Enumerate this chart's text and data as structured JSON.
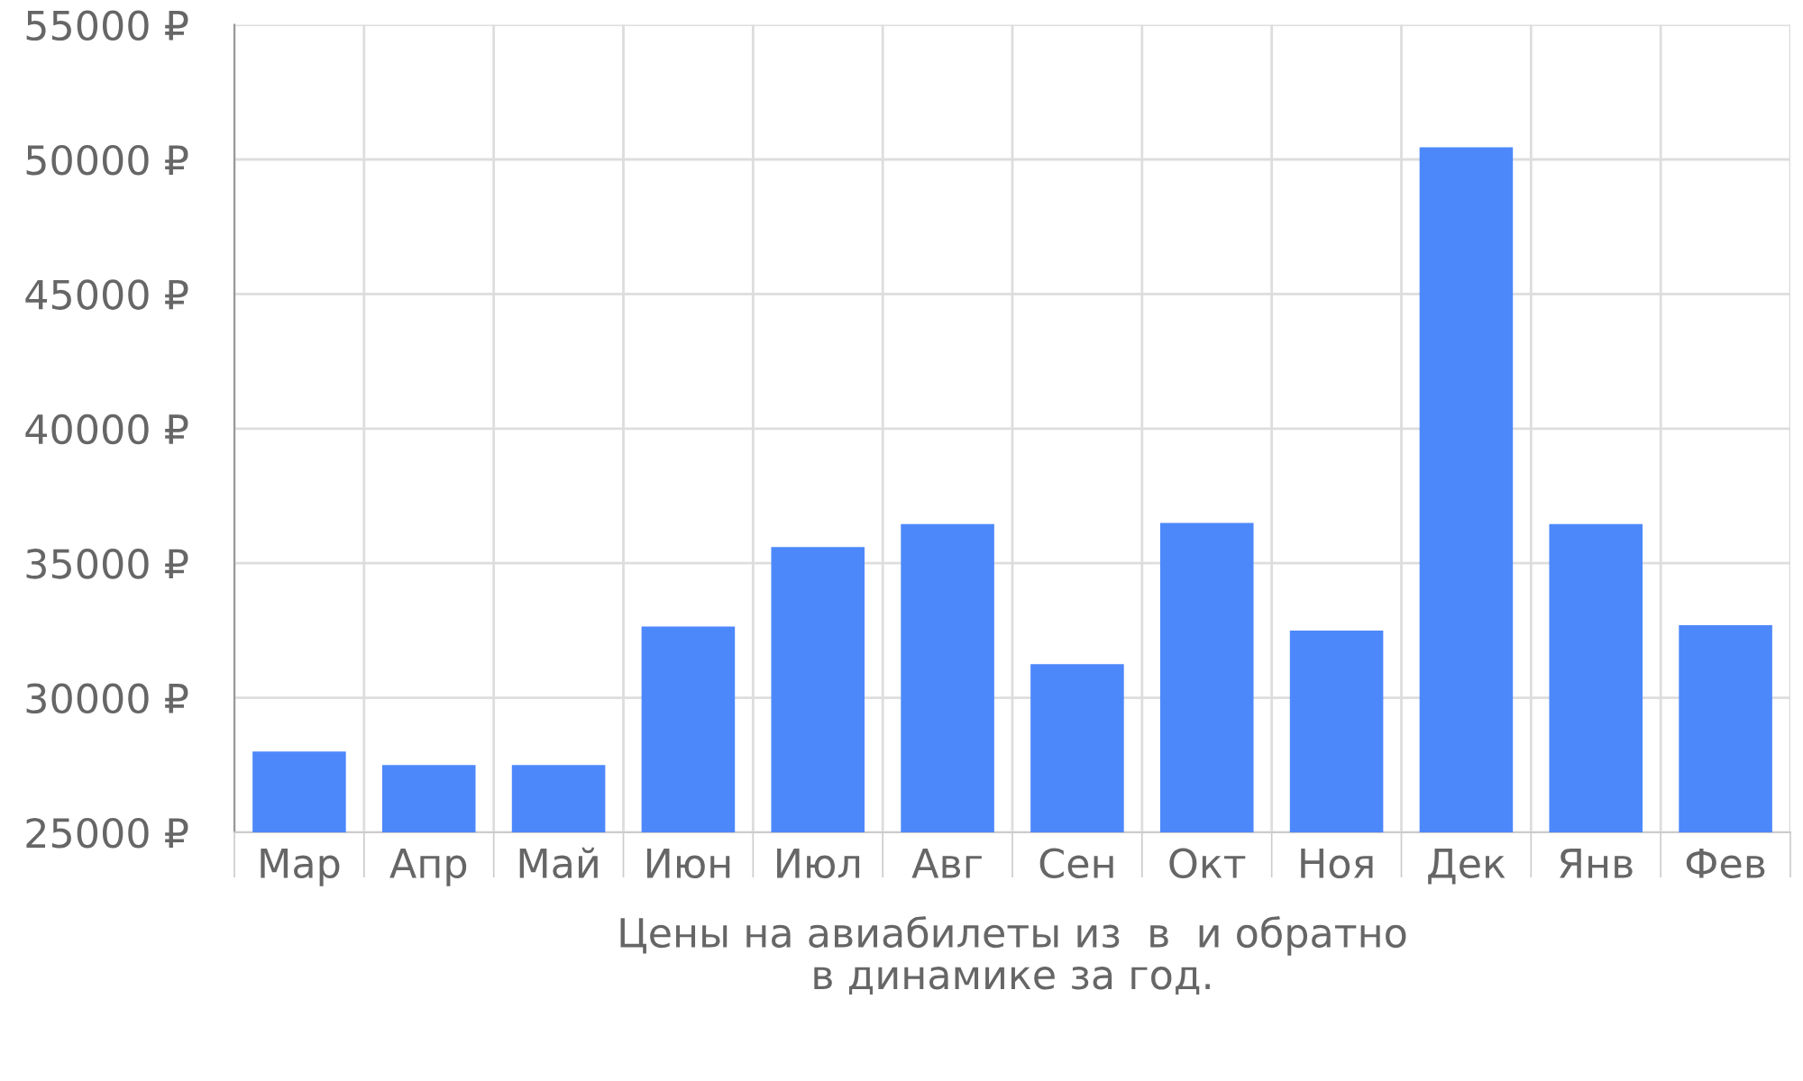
{
  "chart_data": {
    "type": "bar",
    "xlabel": "Цены на авиабилеты из  в  и обратно\nв динамике за год.",
    "categories": [
      "Мар",
      "Апр",
      "Май",
      "Июн",
      "Июл",
      "Авг",
      "Сен",
      "Окт",
      "Ноя",
      "Дек",
      "Янв",
      "Фев"
    ],
    "values": [
      28000,
      27500,
      27500,
      32650,
      35600,
      36450,
      31250,
      36500,
      32500,
      50450,
      36450,
      32700
    ],
    "color": "#4d88fb",
    "ylim": [
      25000,
      55000
    ],
    "yticks": [
      {
        "value": 25000,
        "label": "25000 ₽"
      },
      {
        "value": 30000,
        "label": "30000 ₽"
      },
      {
        "value": 35000,
        "label": "35000 ₽"
      },
      {
        "value": 40000,
        "label": "40000 ₽"
      },
      {
        "value": 45000,
        "label": "45000 ₽"
      },
      {
        "value": 50000,
        "label": "50000 ₽"
      },
      {
        "value": 55000,
        "label": "55000 ₽"
      }
    ],
    "grid": true
  }
}
